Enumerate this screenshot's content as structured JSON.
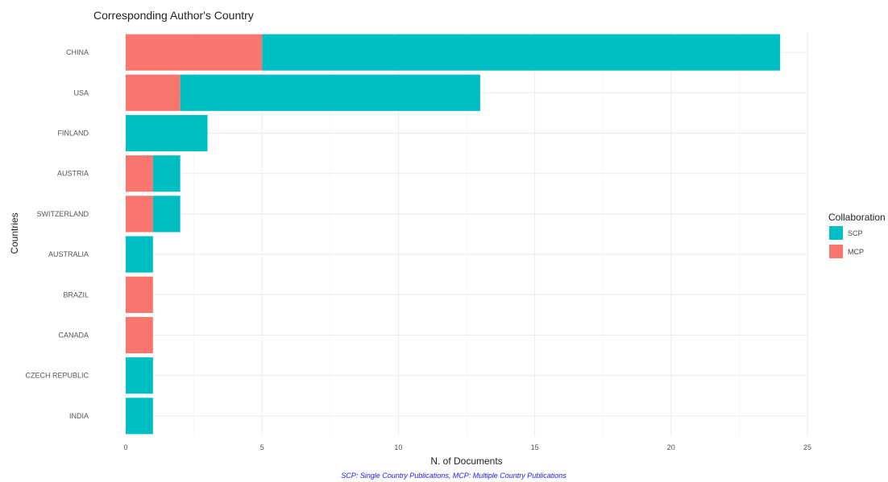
{
  "chart_data": {
    "type": "bar",
    "orientation": "horizontal",
    "stacked": true,
    "title": "Corresponding Author's Country",
    "xlabel": "N. of Documents",
    "ylabel": "Countries",
    "categories": [
      "CHINA",
      "USA",
      "FINLAND",
      "AUSTRIA",
      "SWITZERLAND",
      "AUSTRALIA",
      "BRAZIL",
      "CANADA",
      "CZECH REPUBLIC",
      "INDIA"
    ],
    "series": [
      {
        "name": "MCP",
        "color": "#f8766d",
        "values": [
          5,
          2,
          0,
          1,
          1,
          0,
          1,
          1,
          0,
          0
        ]
      },
      {
        "name": "SCP",
        "color": "#00bfc4",
        "values": [
          19,
          11,
          3,
          1,
          1,
          1,
          0,
          0,
          1,
          1
        ]
      }
    ],
    "xlim": [
      0,
      25
    ],
    "xticks": [
      0,
      5,
      10,
      15,
      20,
      25
    ],
    "grid": true,
    "legend": {
      "title": "Collaboration",
      "placement": "right",
      "entries": [
        {
          "label": "SCP",
          "color": "#00bfc4"
        },
        {
          "label": "MCP",
          "color": "#f8766d"
        }
      ]
    },
    "caption": "SCP: Single Country Publications, MCP: Multiple Country Publications"
  }
}
